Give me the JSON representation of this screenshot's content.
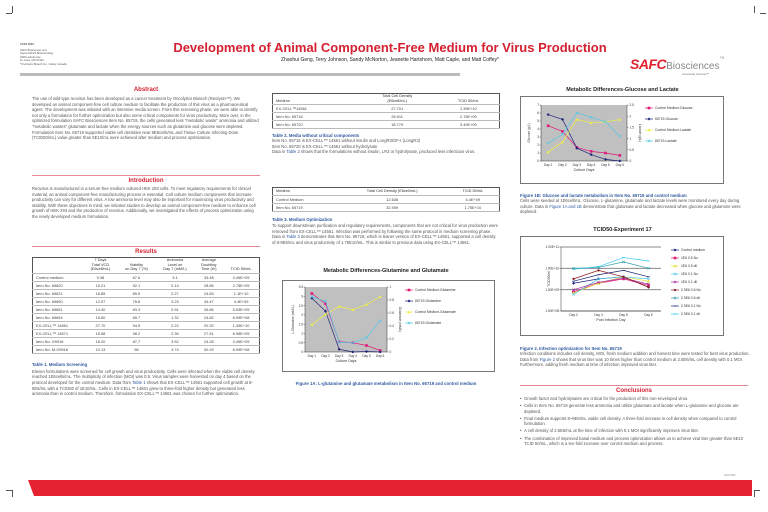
{
  "header": {
    "conference": "CCEX 2006",
    "affiliation": "SAFC Biosciences and\nSigma-Aldrich Biotechnology\n2909 Laclede Ave\nSt. Louis, MO 63103\n*Oncolytics Biotech Inc., Calary, Canada",
    "title": "Development of Animal Component-Free Medium for Virus Production",
    "authors": "Zhaohui Geng, Terry Johnson, Sandy McNorton, Jeanette Hartshorn, Matt Caple, and Matt Coffey*"
  },
  "logo": {
    "brand": "SAFC",
    "name": "Biosciences",
    "tm": "™",
    "tagline": "Accelerate Success™"
  },
  "abstract": {
    "heading": "Abstract",
    "text": "The use of wild-type reovirus has been developed as a cancer treatment by Oncolytics Biotech (Reolysin™). We developed an animal component-free cell culture medium to facilitate the production of this virus as a pharmaceutical agent. The development was initiated with an intensive media screen. From this screening phase, we were able to identify not only a formulation for further optimization but also some critical components for virus productivity. More over, in the optimized formulation SAFC Biosciences Item No. 65719, the cells generated less \"metabolic waste\" ammonia and utilized \"metabolic wastes\" glutamate and lactate when the energy sources such as glutamine and glucose were depleted. Formulation Item No. 65719 supported viable cell densities near 9E6cells/mL and Tissue Culture Infecting Dose (TCID50/mL) value greater than 5E10/mL were achieved after medium and process optimization."
  },
  "introduction": {
    "heading": "Introduction",
    "text": "Reovirus is manufactured in a serum-free medium cultured HEK 293 cells. To meet regulatory requirements for clinical material, an animal component-free manufacturing process is essential. Cell culture medium components that increase productivity can vary for different virus. A low ammonia level may also be important for maximizing virus productivity and stability. With these objectives in mind, we initiated studies to develop an animal component-free medium to enhance cell growth of HEK 293 and the production of reovirus. Additionally, we investigated the effects of process optimization using the newly developed medium formulation."
  },
  "results": {
    "heading": "Results",
    "table1": {
      "headers": [
        "",
        "7 Days\nTotal VCD\n(E6cell/mL)",
        "Viability\non Day 7 (%)",
        "Ammonia\nLevel on\nDay 7 (mM/L)",
        "Average\nDoubling\nTime (hr)",
        "TCID 50/mL"
      ],
      "rows": [
        [
          "Control medium",
          "9.38",
          "67.6",
          "3.1",
          "33.48",
          "3.49E+09"
        ],
        [
          "Item No. 65620",
          "15.21",
          "92.1",
          "2.13",
          "28.85",
          "2.78E+09"
        ],
        [
          "Item No. 65621",
          "18.85",
          "89.5",
          "2.27",
          "24.83",
          "1.1E+10"
        ],
        [
          "Item No. 65650",
          "12.57",
          "78.8",
          "3.23",
          "34.47",
          "4.4E+09"
        ],
        [
          "Item No. 65651",
          "14.40",
          "83.3",
          "2.91",
          "26.86",
          "5.53E+09"
        ],
        [
          "Item No. 65654",
          "15.60",
          "65.7",
          "1.32",
          "24.82",
          "6.99E+08"
        ],
        [
          "EX-CELL™ 14561",
          "27.70",
          "94.5",
          "2.22",
          "20.32",
          "1.39E+10"
        ],
        [
          "EX-CELL™ 14571",
          "15.58",
          "98.2",
          "2.39",
          "27.51",
          "6.96E+09"
        ],
        [
          "Item No. G9916",
          "16.20",
          "87.7",
          "3.52",
          "24.28",
          "3.49E+09"
        ],
        [
          "Item No. M-G9916",
          "10.13",
          "98",
          "3.74",
          "30.29",
          "6.99E+08"
        ]
      ],
      "caption": "Table 1. Medium Screening",
      "text_a": "Eleven formulations were screened for cell growth and virus productivity. Cells were infected when the viable cell density reached 1E6cells/mL. The multiplicity of infection (MOI) was 0.5. Virus samples were harvested on day 4 based on the protocol developed for the control medium. Data from ",
      "link": "Table 1",
      "text_b": " shows that EX-CELL™ 14561 supported cell growth at 8-9E6/mL with a TCID50 of 1E10/mL. Cells in EX-CELL™ 14561 grew to three-fold higher density but generated less ammonia than in control medium. Therefore, formulation EX-CELL™ 14561 was chosen for further optimization."
    },
    "table2": {
      "headers": [
        "Medium",
        "Total Cell Density\n(E6cell/mL)",
        "TCID 50/mL"
      ],
      "rows": [
        [
          "EX-CELL™14561",
          "27.701",
          "1.39E+10"
        ],
        [
          "Item No. 65716",
          "26.911",
          "2.78E+09"
        ],
        [
          "Item No. 65720",
          "18.779",
          "3.49E+09"
        ]
      ],
      "caption": "Table 2. Media without critical components",
      "line1": "Item No. 65716 is EX-CELL™ 14561 without insulin and LongR3IGF-I (LongR3)",
      "line2": "Item No. 65720 is EX-CELL™ 14561 without hydrolysate",
      "text_a": "Data in ",
      "link": "Table 2",
      "text_b": " shows that the formulations without insulin, LR3 or hydrolysate, produced less infectious virus."
    },
    "table3": {
      "headers": [
        "Medium",
        "Total Cell Density (E6cell/mL)",
        "TCID 50/mL"
      ],
      "rows": [
        [
          "Control Medium",
          "12.638",
          "4.4E+09"
        ],
        [
          "Item No. 65719",
          "32.909",
          "1.75E+10"
        ]
      ],
      "caption": "Table 3. Medium Optimization",
      "text_a": "To support downstream purification and regulatory requirements, components that are not critical for virus production were removed from EX-CELL™ 14561. Infection was performed by following the same protocol in medium screening phase. Data in ",
      "link": "Table 3",
      "text_b": " demonstrates that Item No. 65719, which is leaner version of EX-CELL™ 14561, supported a cell density of 8-9E6/mL and virus productivity of 1.75E10/mL. This is similar to previous data using EX-CELL™ 14561."
    },
    "fig1a_caption": "Figure 1A: L-glutamine and glutamate metabolism in Item No. 65719 and control medium",
    "fig1b_caption": "Figure 1B: Glucose and lactate metabolism in Item No. 65719 and control medium",
    "fig1b_text_a": "Cells were seeded at 1E6cell/mL. Glucose, L-glutamine, glutamate and lactate levels were monitored every day during culture. Data in ",
    "fig1b_link": "Figure 1A and 1B",
    "fig1b_text_b": " demonstrate that glutamate and lactate decreased when glucose and glutamine were depleted.",
    "fig2_caption": "Figure 2. Infection optimization for Item No. 65719",
    "fig2_text_a": "Infection conditions includes cell density, MOI, fresh medium addition and harvest time were tested for best virus production. Data from ",
    "fig2_link": "Figure 2",
    "fig2_text_b": " shows that virus titer was 10 times higher than control medium at 2.5E6/mL cell density with 0.1 MOI. Furthermore, adding fresh medium at time of infection improved virus titer."
  },
  "conclusions": {
    "heading": "Conclusions",
    "items": [
      "Growth factor and hydrolysates are critical for the production of this non-enveloped virus.",
      "Cells in Item No. 65719 generate less ammonia and utilize glutamate and lactate when L-glutamine and glucose are depleted.",
      "Final medium supports 8~9E6/mL viable cell density. A three-fold increase in cell density when compared to control formulation.",
      "A cell density of 2.5E6/mL at the time of infection with 0.1 MOI significantly improves virus titer.",
      "The combination of improved basal medium and process optimization allows us to achieve viral titer greater than 5E10 TCID 50/mL, which is a ten-fold increase over control medium and process."
    ],
    "code": "####-####"
  },
  "chart_data": [
    {
      "id": "glucose-lactate",
      "type": "line",
      "title": "Metabolic Differences-Glucose and Lactate",
      "xlabel": "Culture Days",
      "ylabel": "Glucose (g/L)",
      "y2label": "Lactate (g/L)",
      "categories": [
        "Day 1",
        "Day 2",
        "Day 3",
        "Day 4",
        "Day 5",
        "Day 6"
      ],
      "ylim": [
        0,
        7
      ],
      "yticks": [
        0,
        1,
        2,
        3,
        4,
        5,
        6,
        7
      ],
      "y2lim": [
        0,
        2.5
      ],
      "y2ticks": [
        "0",
        "0.5",
        "1",
        "1.5",
        "2",
        "2.5"
      ],
      "legend": "right",
      "background": "#c0c0c0",
      "series": [
        {
          "name": "Control Medium-Glucose",
          "axis": "left",
          "color": "#e0187a",
          "marker": "square",
          "values": [
            4.4,
            3.7,
            1.7,
            1.2,
            1.0,
            0.7
          ]
        },
        {
          "name": "65719-Glucose",
          "axis": "left",
          "color": "#1c237a",
          "marker": "diamond",
          "values": [
            5.8,
            5.2,
            1.6,
            0.8,
            0.2,
            0.0
          ]
        },
        {
          "name": "Control Medium-Lactate",
          "axis": "right",
          "color": "#f0f040",
          "marker": "triangle",
          "values": [
            0.4,
            0.85,
            1.85,
            1.7,
            1.75,
            1.85
          ]
        },
        {
          "name": "65719-Lactate",
          "axis": "right",
          "color": "#50c8e8",
          "marker": "x",
          "values": [
            0.8,
            1.2,
            2.15,
            1.95,
            1.75,
            1.1
          ]
        }
      ]
    },
    {
      "id": "glutamine-glutamate",
      "type": "line",
      "title": "Metabolic Differences-Glutamine and Glutamate",
      "xlabel": "Culture Days",
      "ylabel": "L-Glutamine (mM/L)",
      "y2label": "Glutamate (mM/L)",
      "categories": [
        "Day 1",
        "Day 2",
        "Day 3",
        "Day 4",
        "Day 5",
        "Day 6"
      ],
      "ylim": [
        0,
        3.5
      ],
      "yticks": [
        "0",
        "0.5",
        "1",
        "1.5",
        "2",
        "2.5",
        "3",
        "3.5"
      ],
      "y2lim": [
        0,
        1
      ],
      "y2ticks": [
        "0",
        "0.2",
        "0.4",
        "0.6",
        "0.8",
        "1"
      ],
      "legend": "right",
      "background": "#c0c0c0",
      "series": [
        {
          "name": "Control Medium-Glutamine",
          "axis": "left",
          "color": "#e0187a",
          "marker": "square",
          "values": [
            3.15,
            2.6,
            0.55,
            0.5,
            0.35,
            0.08
          ]
        },
        {
          "name": "65719-Glutamine",
          "axis": "left",
          "color": "#1c237a",
          "marker": "diamond",
          "values": [
            2.9,
            2.2,
            0.15,
            0.0,
            0.03,
            0.0
          ]
        },
        {
          "name": "Control Medium-Glutamate",
          "axis": "right",
          "color": "#f0f040",
          "marker": "triangle",
          "values": [
            0.42,
            0.58,
            0.7,
            0.65,
            0.73,
            0.85
          ]
        },
        {
          "name": "65719-Glutamate",
          "axis": "right",
          "color": "#50c8e8",
          "marker": "x",
          "values": [
            0.85,
            0.78,
            0.15,
            0.14,
            0.22,
            0.48
          ]
        }
      ]
    },
    {
      "id": "tcid50",
      "type": "line",
      "title": "TCID50-Experiment 17",
      "xlabel": "Post Infection Day",
      "ylabel": "TCID50/ml",
      "categories": [
        "Day 3",
        "Day 4",
        "Day 5",
        "Day 6"
      ],
      "yscale": "log",
      "ylim": [
        100000000.0,
        100000000000.0
      ],
      "yticks": [
        "1.00E+08",
        "1.00E+09",
        "1.00E+10",
        "1.00E+11"
      ],
      "legend": "right",
      "background": "#ffffff",
      "series": [
        {
          "name": "Control medium",
          "color": "#1c237a",
          "marker": "diamond",
          "values": [
            2000000000.0,
            3200000000.0,
            4000000000.0,
            1300000000.0
          ]
        },
        {
          "name": "1E6 0.5 No",
          "color": "#e0187a",
          "marker": "square",
          "values": [
            800000000.0,
            2000000000.0,
            3200000000.0,
            1600000000.0
          ]
        },
        {
          "name": "1E6 0.5 dil",
          "color": "#e8e030",
          "marker": "triangle",
          "values": [
            700000000.0,
            2000000000.0,
            4000000000.0,
            2500000000.0
          ]
        },
        {
          "name": "1E6 0.1 No",
          "color": "#50c8e8",
          "marker": "x",
          "values": [
            600000000.0,
            3200000000.0,
            4000000000.0,
            3200000000.0
          ]
        },
        {
          "name": "1E6 0.1 dil",
          "color": "#a0309a",
          "marker": "x",
          "values": [
            1000000000.0,
            2200000000.0,
            3500000000.0,
            1800000000.0
          ]
        },
        {
          "name": "2.5E6 0.5 No",
          "color": "#8a1a1a",
          "marker": "circle",
          "values": [
            3200000000.0,
            8000000000.0,
            4000000000.0,
            1300000000.0
          ]
        },
        {
          "name": "2.5E6 0.5 dil",
          "color": "#30a0a8",
          "marker": "x",
          "values": [
            10000000000.0,
            11000000000.0,
            20000000000.0,
            10000000000.0
          ]
        },
        {
          "name": "2.5E6 0.1 No",
          "color": "#1c237a",
          "marker": "dash",
          "values": [
            2500000000.0,
            5000000000.0,
            8000000000.0,
            4000000000.0
          ]
        },
        {
          "name": "2.5E6 0.1 dil",
          "color": "#30c8f0",
          "marker": "dash",
          "values": [
            9000000000.0,
            12000000000.0,
            32000000000.0,
            22000000000.0
          ]
        }
      ]
    }
  ]
}
